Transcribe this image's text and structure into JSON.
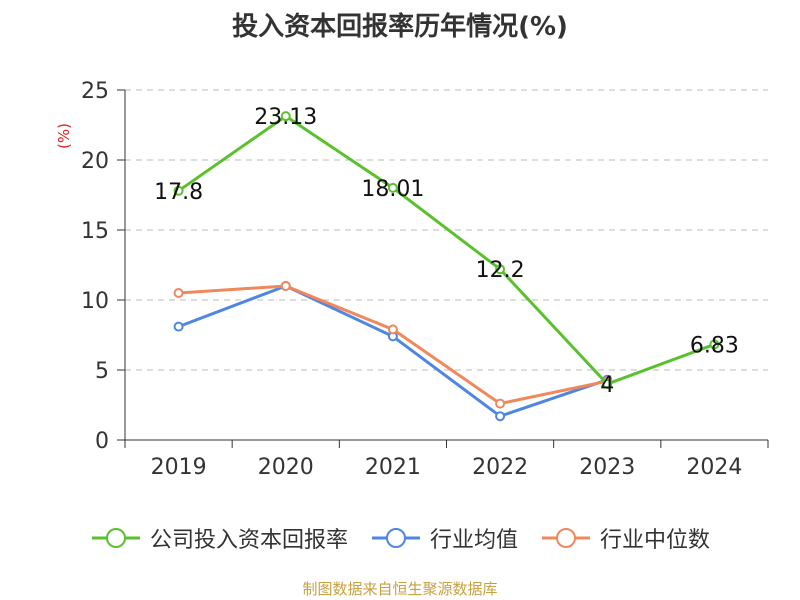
{
  "chart_data": {
    "type": "line",
    "title": "投入资本回报率历年情况(%)",
    "ylabel": "(%)",
    "xlabel": "",
    "categories": [
      "2019",
      "2020",
      "2021",
      "2022",
      "2023",
      "2024"
    ],
    "ylim": [
      0,
      25
    ],
    "yticks": [
      0,
      5,
      10,
      15,
      20,
      25
    ],
    "grid": true,
    "legend_position": "bottom",
    "series": [
      {
        "name": "公司投入资本回报率",
        "color": "#5ac12e",
        "values": [
          17.8,
          23.13,
          18.01,
          12.2,
          4,
          6.83
        ],
        "labels": [
          "17.8",
          "23.13",
          "18.01",
          "12.2",
          "4",
          "6.83"
        ],
        "show_labels": true
      },
      {
        "name": "行业均值",
        "color": "#4f86e0",
        "values": [
          8.1,
          11.0,
          7.4,
          1.7,
          4.3,
          null
        ],
        "show_labels": false
      },
      {
        "name": "行业中位数",
        "color": "#f0885c",
        "values": [
          10.5,
          11.0,
          7.9,
          2.6,
          4.2,
          null
        ],
        "show_labels": false
      }
    ]
  },
  "source": "制图数据来自恒生聚源数据库"
}
